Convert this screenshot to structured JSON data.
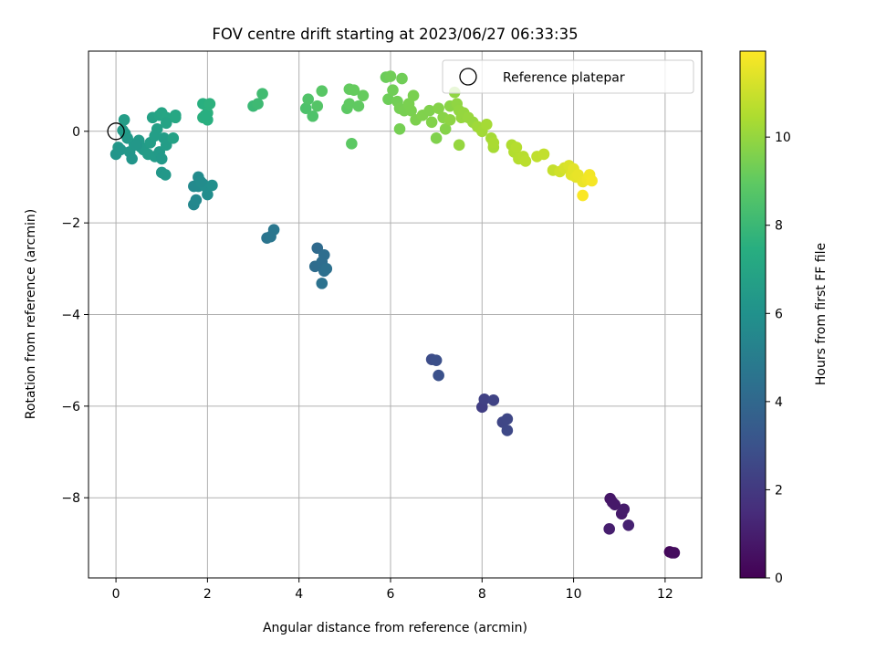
{
  "chart_data": {
    "type": "scatter",
    "title": "FOV centre drift starting at 2023/06/27 06:33:35",
    "xlabel": "Angular distance from reference (arcmin)",
    "ylabel": "Rotation from reference (arcmin)",
    "xlim": [
      -0.6,
      12.8
    ],
    "ylim": [
      -9.75,
      1.75
    ],
    "xticks": [
      0,
      2,
      4,
      6,
      8,
      10,
      12
    ],
    "xtick_labels": [
      "0",
      "2",
      "4",
      "6",
      "8",
      "10",
      "12"
    ],
    "yticks": [
      0,
      -2,
      -4,
      -6,
      -8
    ],
    "ytick_labels": [
      "0",
      "−2",
      "−4",
      "−6",
      "−8"
    ],
    "grid": true,
    "colormap": "viridis",
    "legend": {
      "placement": "top-right",
      "entries": [
        "Reference platepar"
      ]
    },
    "reference_point": {
      "x": 0,
      "y": 0,
      "label": "Reference platepar"
    },
    "colorbar": {
      "label": "Hours from first FF file",
      "min": 0,
      "max": 11.95,
      "ticks": [
        0,
        2,
        4,
        6,
        8,
        10
      ],
      "tick_labels": [
        "0",
        "2",
        "4",
        "6",
        "8",
        "10"
      ]
    },
    "series": [
      {
        "points": [
          [
            12.1,
            -9.18,
            0.2
          ],
          [
            12.15,
            -9.2,
            0.3
          ],
          [
            12.2,
            -9.2,
            0.4
          ],
          [
            10.8,
            -8.02,
            0.7
          ],
          [
            10.85,
            -8.1,
            0.75
          ],
          [
            10.9,
            -8.15,
            0.8
          ],
          [
            11.05,
            -8.35,
            0.85
          ],
          [
            11.1,
            -8.25,
            0.9
          ],
          [
            10.78,
            -8.68,
            1.0
          ],
          [
            11.2,
            -8.6,
            1.1
          ],
          [
            8.0,
            -6.02,
            2.2
          ],
          [
            8.05,
            -5.85,
            2.3
          ],
          [
            8.25,
            -5.87,
            2.4
          ],
          [
            8.45,
            -6.35,
            2.5
          ],
          [
            8.55,
            -6.28,
            2.55
          ],
          [
            8.55,
            -6.53,
            2.6
          ],
          [
            6.9,
            -4.98,
            2.8
          ],
          [
            7.0,
            -5.0,
            2.9
          ],
          [
            7.05,
            -5.33,
            2.95
          ],
          [
            4.4,
            -2.55,
            4.1
          ],
          [
            4.35,
            -2.95,
            4.2
          ],
          [
            4.5,
            -2.85,
            4.25
          ],
          [
            4.55,
            -2.7,
            4.3
          ],
          [
            4.55,
            -3.05,
            4.35
          ],
          [
            4.6,
            -3.0,
            4.4
          ],
          [
            4.5,
            -3.32,
            4.5
          ],
          [
            3.3,
            -2.33,
            4.6
          ],
          [
            3.45,
            -2.15,
            4.7
          ],
          [
            3.38,
            -2.3,
            4.65
          ],
          [
            1.7,
            -1.6,
            5.5
          ],
          [
            1.75,
            -1.5,
            5.55
          ],
          [
            1.7,
            -1.2,
            5.6
          ],
          [
            1.8,
            -1.2,
            5.65
          ],
          [
            1.8,
            -1.0,
            5.7
          ],
          [
            1.9,
            -1.15,
            5.75
          ],
          [
            2.0,
            -1.38,
            5.8
          ],
          [
            1.95,
            -1.2,
            5.85
          ],
          [
            2.1,
            -1.18,
            5.9
          ],
          [
            1.85,
            -1.1,
            5.75
          ],
          [
            0.0,
            -0.5,
            6.2
          ],
          [
            0.05,
            -0.35,
            6.3
          ],
          [
            0.1,
            -0.4,
            6.25
          ],
          [
            0.2,
            -0.05,
            6.35
          ],
          [
            0.25,
            -0.15,
            6.4
          ],
          [
            0.15,
            0.02,
            6.5
          ],
          [
            0.18,
            0.25,
            6.6
          ],
          [
            0.3,
            -0.45,
            6.3
          ],
          [
            0.35,
            -0.6,
            6.2
          ],
          [
            0.4,
            -0.28,
            6.4
          ],
          [
            0.5,
            -0.2,
            6.45
          ],
          [
            0.55,
            -0.35,
            6.5
          ],
          [
            0.6,
            -0.4,
            6.5
          ],
          [
            0.7,
            -0.5,
            6.55
          ],
          [
            0.75,
            -0.25,
            6.6
          ],
          [
            0.85,
            -0.55,
            6.5
          ],
          [
            0.95,
            -0.45,
            6.45
          ],
          [
            1.0,
            -0.6,
            6.4
          ],
          [
            1.05,
            -0.15,
            6.55
          ],
          [
            1.1,
            -0.3,
            6.6
          ],
          [
            1.0,
            -0.9,
            6.3
          ],
          [
            1.08,
            -0.95,
            6.35
          ],
          [
            0.9,
            0.05,
            6.7
          ],
          [
            0.85,
            -0.1,
            6.65
          ],
          [
            0.8,
            0.3,
            6.8
          ],
          [
            0.95,
            0.35,
            6.9
          ],
          [
            1.0,
            0.4,
            6.95
          ],
          [
            1.1,
            0.3,
            7.0
          ],
          [
            1.1,
            0.18,
            6.9
          ],
          [
            1.25,
            -0.15,
            6.8
          ],
          [
            1.3,
            0.35,
            7.0
          ],
          [
            1.3,
            0.3,
            7.1
          ],
          [
            0.45,
            -0.3,
            6.3
          ],
          [
            1.9,
            0.6,
            7.5
          ],
          [
            2.05,
            0.6,
            7.6
          ],
          [
            1.9,
            0.3,
            7.55
          ],
          [
            2.0,
            0.4,
            7.6
          ],
          [
            2.0,
            0.25,
            7.5
          ],
          [
            1.95,
            0.35,
            7.45
          ],
          [
            3.0,
            0.55,
            8.0
          ],
          [
            3.1,
            0.6,
            8.1
          ],
          [
            3.2,
            0.82,
            8.2
          ],
          [
            4.15,
            0.5,
            8.5
          ],
          [
            4.2,
            0.7,
            8.6
          ],
          [
            4.3,
            0.33,
            8.55
          ],
          [
            4.4,
            0.55,
            8.7
          ],
          [
            4.5,
            0.88,
            8.8
          ],
          [
            5.05,
            0.5,
            8.9
          ],
          [
            5.1,
            0.6,
            9.0
          ],
          [
            5.1,
            0.92,
            9.05
          ],
          [
            5.2,
            0.9,
            9.1
          ],
          [
            5.3,
            0.55,
            9.0
          ],
          [
            5.4,
            0.78,
            9.1
          ],
          [
            5.15,
            -0.27,
            8.9
          ],
          [
            5.9,
            1.18,
            9.2
          ],
          [
            6.0,
            1.2,
            9.3
          ],
          [
            5.95,
            0.7,
            9.25
          ],
          [
            6.05,
            0.9,
            9.3
          ],
          [
            6.15,
            0.65,
            9.35
          ],
          [
            6.2,
            0.5,
            9.4
          ],
          [
            6.3,
            0.45,
            9.45
          ],
          [
            6.4,
            0.6,
            9.5
          ],
          [
            6.5,
            0.78,
            9.5
          ],
          [
            6.45,
            0.45,
            9.5
          ],
          [
            6.55,
            0.25,
            9.55
          ],
          [
            6.7,
            0.35,
            9.6
          ],
          [
            6.2,
            0.05,
            9.4
          ],
          [
            6.25,
            1.15,
            9.3
          ],
          [
            6.85,
            0.45,
            9.6
          ],
          [
            6.9,
            0.2,
            9.65
          ],
          [
            7.0,
            -0.15,
            9.6
          ],
          [
            7.05,
            0.5,
            9.7
          ],
          [
            7.15,
            0.3,
            9.75
          ],
          [
            7.2,
            0.05,
            9.7
          ],
          [
            7.3,
            0.55,
            9.8
          ],
          [
            7.3,
            0.25,
            9.85
          ],
          [
            7.4,
            0.85,
            9.9
          ],
          [
            7.45,
            0.6,
            9.9
          ],
          [
            7.5,
            0.45,
            9.95
          ],
          [
            7.55,
            0.3,
            10.0
          ],
          [
            7.6,
            0.4,
            10.0
          ],
          [
            7.7,
            0.3,
            10.05
          ],
          [
            7.5,
            -0.3,
            10.0
          ],
          [
            7.8,
            0.2,
            10.05
          ],
          [
            7.9,
            0.1,
            10.2
          ],
          [
            8.0,
            0.0,
            10.25
          ],
          [
            8.1,
            0.15,
            10.3
          ],
          [
            8.2,
            -0.15,
            10.3
          ],
          [
            8.25,
            -0.35,
            10.35
          ],
          [
            8.25,
            -0.25,
            10.4
          ],
          [
            8.65,
            -0.3,
            10.5
          ],
          [
            8.7,
            -0.45,
            10.55
          ],
          [
            8.75,
            -0.35,
            10.6
          ],
          [
            8.8,
            -0.6,
            10.6
          ],
          [
            8.9,
            -0.55,
            10.65
          ],
          [
            8.95,
            -0.65,
            10.7
          ],
          [
            9.2,
            -0.55,
            10.8
          ],
          [
            9.35,
            -0.5,
            10.85
          ],
          [
            9.55,
            -0.85,
            10.9
          ],
          [
            9.7,
            -0.88,
            11.1
          ],
          [
            9.8,
            -0.8,
            11.2
          ],
          [
            9.9,
            -0.75,
            11.3
          ],
          [
            9.95,
            -0.95,
            11.4
          ],
          [
            10.0,
            -0.82,
            11.45
          ],
          [
            10.05,
            -1.0,
            11.5
          ],
          [
            10.1,
            -0.95,
            11.55
          ],
          [
            10.2,
            -1.1,
            11.6
          ],
          [
            10.3,
            -1.05,
            11.7
          ],
          [
            10.35,
            -0.95,
            11.75
          ],
          [
            10.4,
            -1.08,
            11.8
          ],
          [
            10.2,
            -1.4,
            11.9
          ]
        ]
      }
    ]
  }
}
